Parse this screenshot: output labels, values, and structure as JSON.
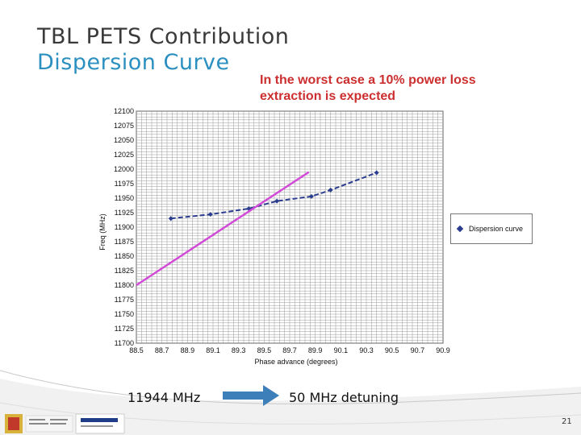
{
  "slide": {
    "title": "TBL PETS Contribution",
    "subtitle": "Dispersion Curve",
    "note": "In the worst case a 10% power loss extraction is expected",
    "footer_left": "11944 MHz",
    "footer_right": "50 MHz detuning",
    "page_number": "21",
    "colors": {
      "title": "#3a3a3a",
      "subtitle": "#2b8fc0",
      "note": "#cc2f2f",
      "arrow": "#3d7fb8"
    }
  },
  "chart_data": {
    "type": "line",
    "title": "",
    "xlabel": "Phase advance (degrees)",
    "ylabel": "Freq (MHz)",
    "xlim": [
      88.5,
      90.9
    ],
    "ylim": [
      11700,
      12100
    ],
    "x_ticks": [
      "88.5",
      "88.7",
      "88.9",
      "89.1",
      "89.3",
      "89.5",
      "89.7",
      "89.9",
      "90.1",
      "90.3",
      "90.5",
      "90.7",
      "90.9"
    ],
    "y_ticks": [
      "12100",
      "12075",
      "12050",
      "12025",
      "12000",
      "11975",
      "11950",
      "11925",
      "11900",
      "11875",
      "11850",
      "11825",
      "11800",
      "11775",
      "11750",
      "11725",
      "11700"
    ],
    "grid": true,
    "legend": "right",
    "series": [
      {
        "name": "Dispersion curve",
        "color": "#2a3d8f",
        "style": "dashed-with-markers",
        "x": [
          88.77,
          89.08,
          89.38,
          89.6,
          89.87,
          90.02,
          90.38
        ],
        "y": [
          11915,
          11922,
          11932,
          11945,
          11953,
          11964,
          11994
        ]
      },
      {
        "name": "",
        "color": "#d24bd8",
        "style": "solid",
        "x": [
          88.5,
          89.85
        ],
        "y": [
          11800,
          11995
        ]
      }
    ]
  }
}
